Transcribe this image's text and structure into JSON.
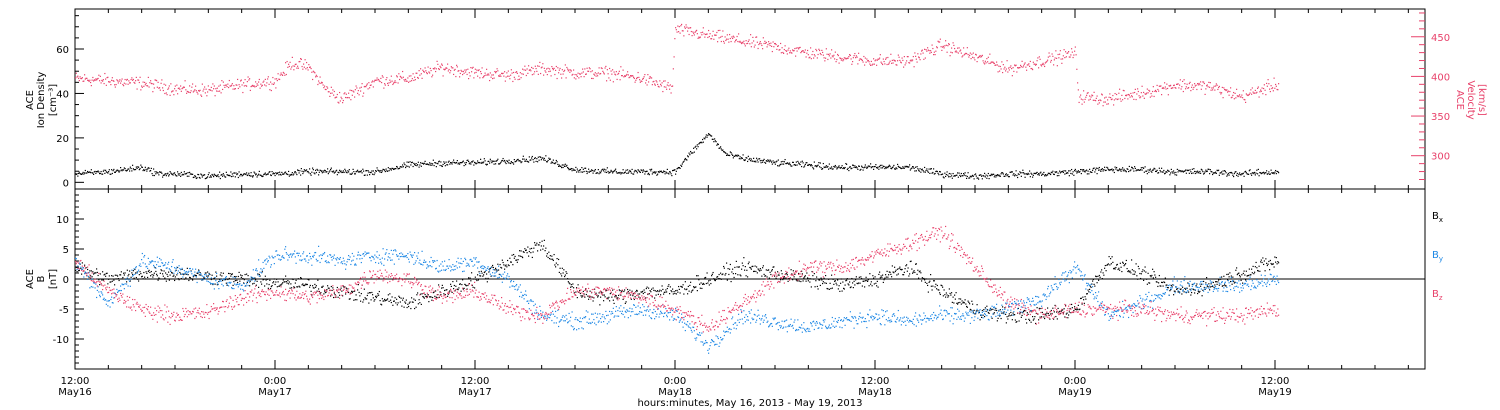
{
  "figure": {
    "xlabel": "hours:minutes, May 16, 2013 - May 19, 2013",
    "x_ticks": [
      {
        "hours": 0,
        "time": "12:00",
        "date": "May16"
      },
      {
        "hours": 12,
        "time": "0:00",
        "date": "May17"
      },
      {
        "hours": 24,
        "time": "12:00",
        "date": "May17"
      },
      {
        "hours": 36,
        "time": "0:00",
        "date": "May18"
      },
      {
        "hours": 48,
        "time": "12:00",
        "date": "May18"
      },
      {
        "hours": 60,
        "time": "0:00",
        "date": "May19"
      },
      {
        "hours": 72,
        "time": "12:00",
        "date": "May19"
      }
    ],
    "xlim_hours": [
      0,
      81
    ]
  },
  "chart_data": [
    {
      "type": "scatter",
      "panel": "top",
      "ylabel_left": [
        "ACE",
        "Ion Density",
        "[cm⁻³]"
      ],
      "ylabel_right": [
        "ACE",
        "Velocity",
        "[km/s]"
      ],
      "ylim_left": [
        -3,
        78
      ],
      "ylim_right": [
        258,
        485
      ],
      "yticks_left": [
        0,
        20,
        40,
        60
      ],
      "yticks_right": [
        300,
        350,
        400,
        450
      ],
      "series": [
        {
          "name": "Ion Density",
          "axis": "left",
          "color": "#000000",
          "x_hours": [
            0,
            2,
            4,
            5,
            6,
            8,
            10,
            12,
            14,
            14.5,
            16,
            18,
            20,
            22,
            24,
            26,
            28,
            30,
            32,
            34,
            36,
            37,
            38,
            39,
            40,
            42,
            44,
            46,
            48,
            50,
            52,
            54,
            56,
            58,
            60,
            62,
            64,
            66,
            68,
            70,
            72
          ],
          "values": [
            4,
            5,
            7,
            4,
            4,
            3,
            4,
            4,
            5,
            5,
            5,
            5,
            8,
            9,
            9,
            10,
            11,
            6,
            5,
            5,
            5,
            14,
            22,
            13,
            11,
            9,
            8,
            7,
            7,
            7,
            4,
            3,
            4,
            4,
            5,
            6,
            6,
            5,
            5,
            4,
            5
          ]
        },
        {
          "name": "Velocity",
          "axis": "right",
          "color": "#e8426b",
          "x_hours": [
            0,
            2,
            4,
            6,
            8,
            10,
            12,
            13,
            14,
            15,
            16,
            18,
            20,
            22,
            24,
            26,
            28,
            30,
            32,
            34,
            35.8,
            36,
            38,
            40,
            42,
            44,
            46,
            48,
            50,
            52,
            54,
            56,
            58,
            60,
            60.2,
            62,
            64,
            66,
            68,
            70,
            72
          ],
          "values": [
            398,
            395,
            392,
            385,
            383,
            390,
            395,
            418,
            412,
            385,
            372,
            395,
            398,
            412,
            405,
            402,
            410,
            405,
            405,
            398,
            385,
            460,
            452,
            445,
            438,
            430,
            425,
            420,
            420,
            440,
            425,
            410,
            420,
            430,
            375,
            372,
            380,
            390,
            388,
            375,
            390
          ]
        }
      ]
    },
    {
      "type": "scatter",
      "panel": "bottom",
      "ylabel_left": [
        "ACE",
        "B",
        "[nT]"
      ],
      "ylim": [
        -15,
        15
      ],
      "yticks": [
        -10,
        -5,
        0,
        5,
        10
      ],
      "zero_line": true,
      "legend": [
        "Bx",
        "By",
        "Bz"
      ],
      "series": [
        {
          "name": "Bx",
          "color": "#000000",
          "x_hours": [
            0,
            2,
            4,
            6,
            8,
            10,
            12,
            14,
            16,
            18,
            20,
            22,
            24,
            26,
            28,
            30,
            32,
            34,
            36,
            38,
            40,
            42,
            44,
            46,
            48,
            50,
            52,
            54,
            56,
            58,
            60,
            62,
            64,
            66,
            68,
            70,
            72
          ],
          "values": [
            2,
            0,
            1,
            1,
            0.5,
            0,
            -0.5,
            -1,
            -2,
            -3,
            -4,
            -2,
            0,
            3,
            6,
            -2,
            -3,
            -2,
            -2,
            0,
            2,
            1,
            0,
            -1,
            0,
            2,
            -2,
            -5,
            -6,
            -6,
            -5,
            3,
            1,
            -2,
            -1,
            1,
            3
          ]
        },
        {
          "name": "By",
          "color": "#1e88e5",
          "x_hours": [
            0,
            2,
            4,
            6,
            8,
            10,
            12,
            14,
            16,
            18,
            20,
            22,
            24,
            26,
            28,
            30,
            32,
            34,
            36,
            38,
            40,
            42,
            44,
            46,
            48,
            50,
            52,
            54,
            56,
            58,
            60,
            62,
            64,
            66,
            68,
            70,
            72
          ],
          "values": [
            3,
            -4,
            3,
            2,
            0,
            -1,
            4,
            4,
            3,
            4,
            4,
            2,
            3,
            0,
            -6,
            -7,
            -6,
            -5,
            -6,
            -11,
            -6,
            -7,
            -8,
            -7,
            -6,
            -7,
            -6,
            -6,
            -5,
            -3,
            2,
            -6,
            -4,
            -1,
            -1,
            -1,
            0
          ]
        },
        {
          "name": "Bz",
          "color": "#e8426b",
          "x_hours": [
            0,
            2,
            4,
            6,
            8,
            10,
            12,
            14,
            16,
            18,
            20,
            22,
            24,
            26,
            28,
            30,
            32,
            34,
            36,
            38,
            40,
            42,
            44,
            46,
            48,
            50,
            52,
            54,
            56,
            58,
            60,
            62,
            64,
            66,
            68,
            70,
            72
          ],
          "values": [
            3,
            -2,
            -5,
            -6,
            -5.5,
            -3,
            -2,
            -3,
            -2,
            1,
            0,
            -3,
            -2,
            -5,
            -6,
            -2,
            -2,
            -3,
            -5,
            -8,
            -4,
            0,
            2,
            2,
            4,
            6,
            8,
            2,
            -4,
            -6,
            -5,
            -5,
            -5,
            -6,
            -6,
            -6,
            -5
          ]
        }
      ]
    }
  ]
}
